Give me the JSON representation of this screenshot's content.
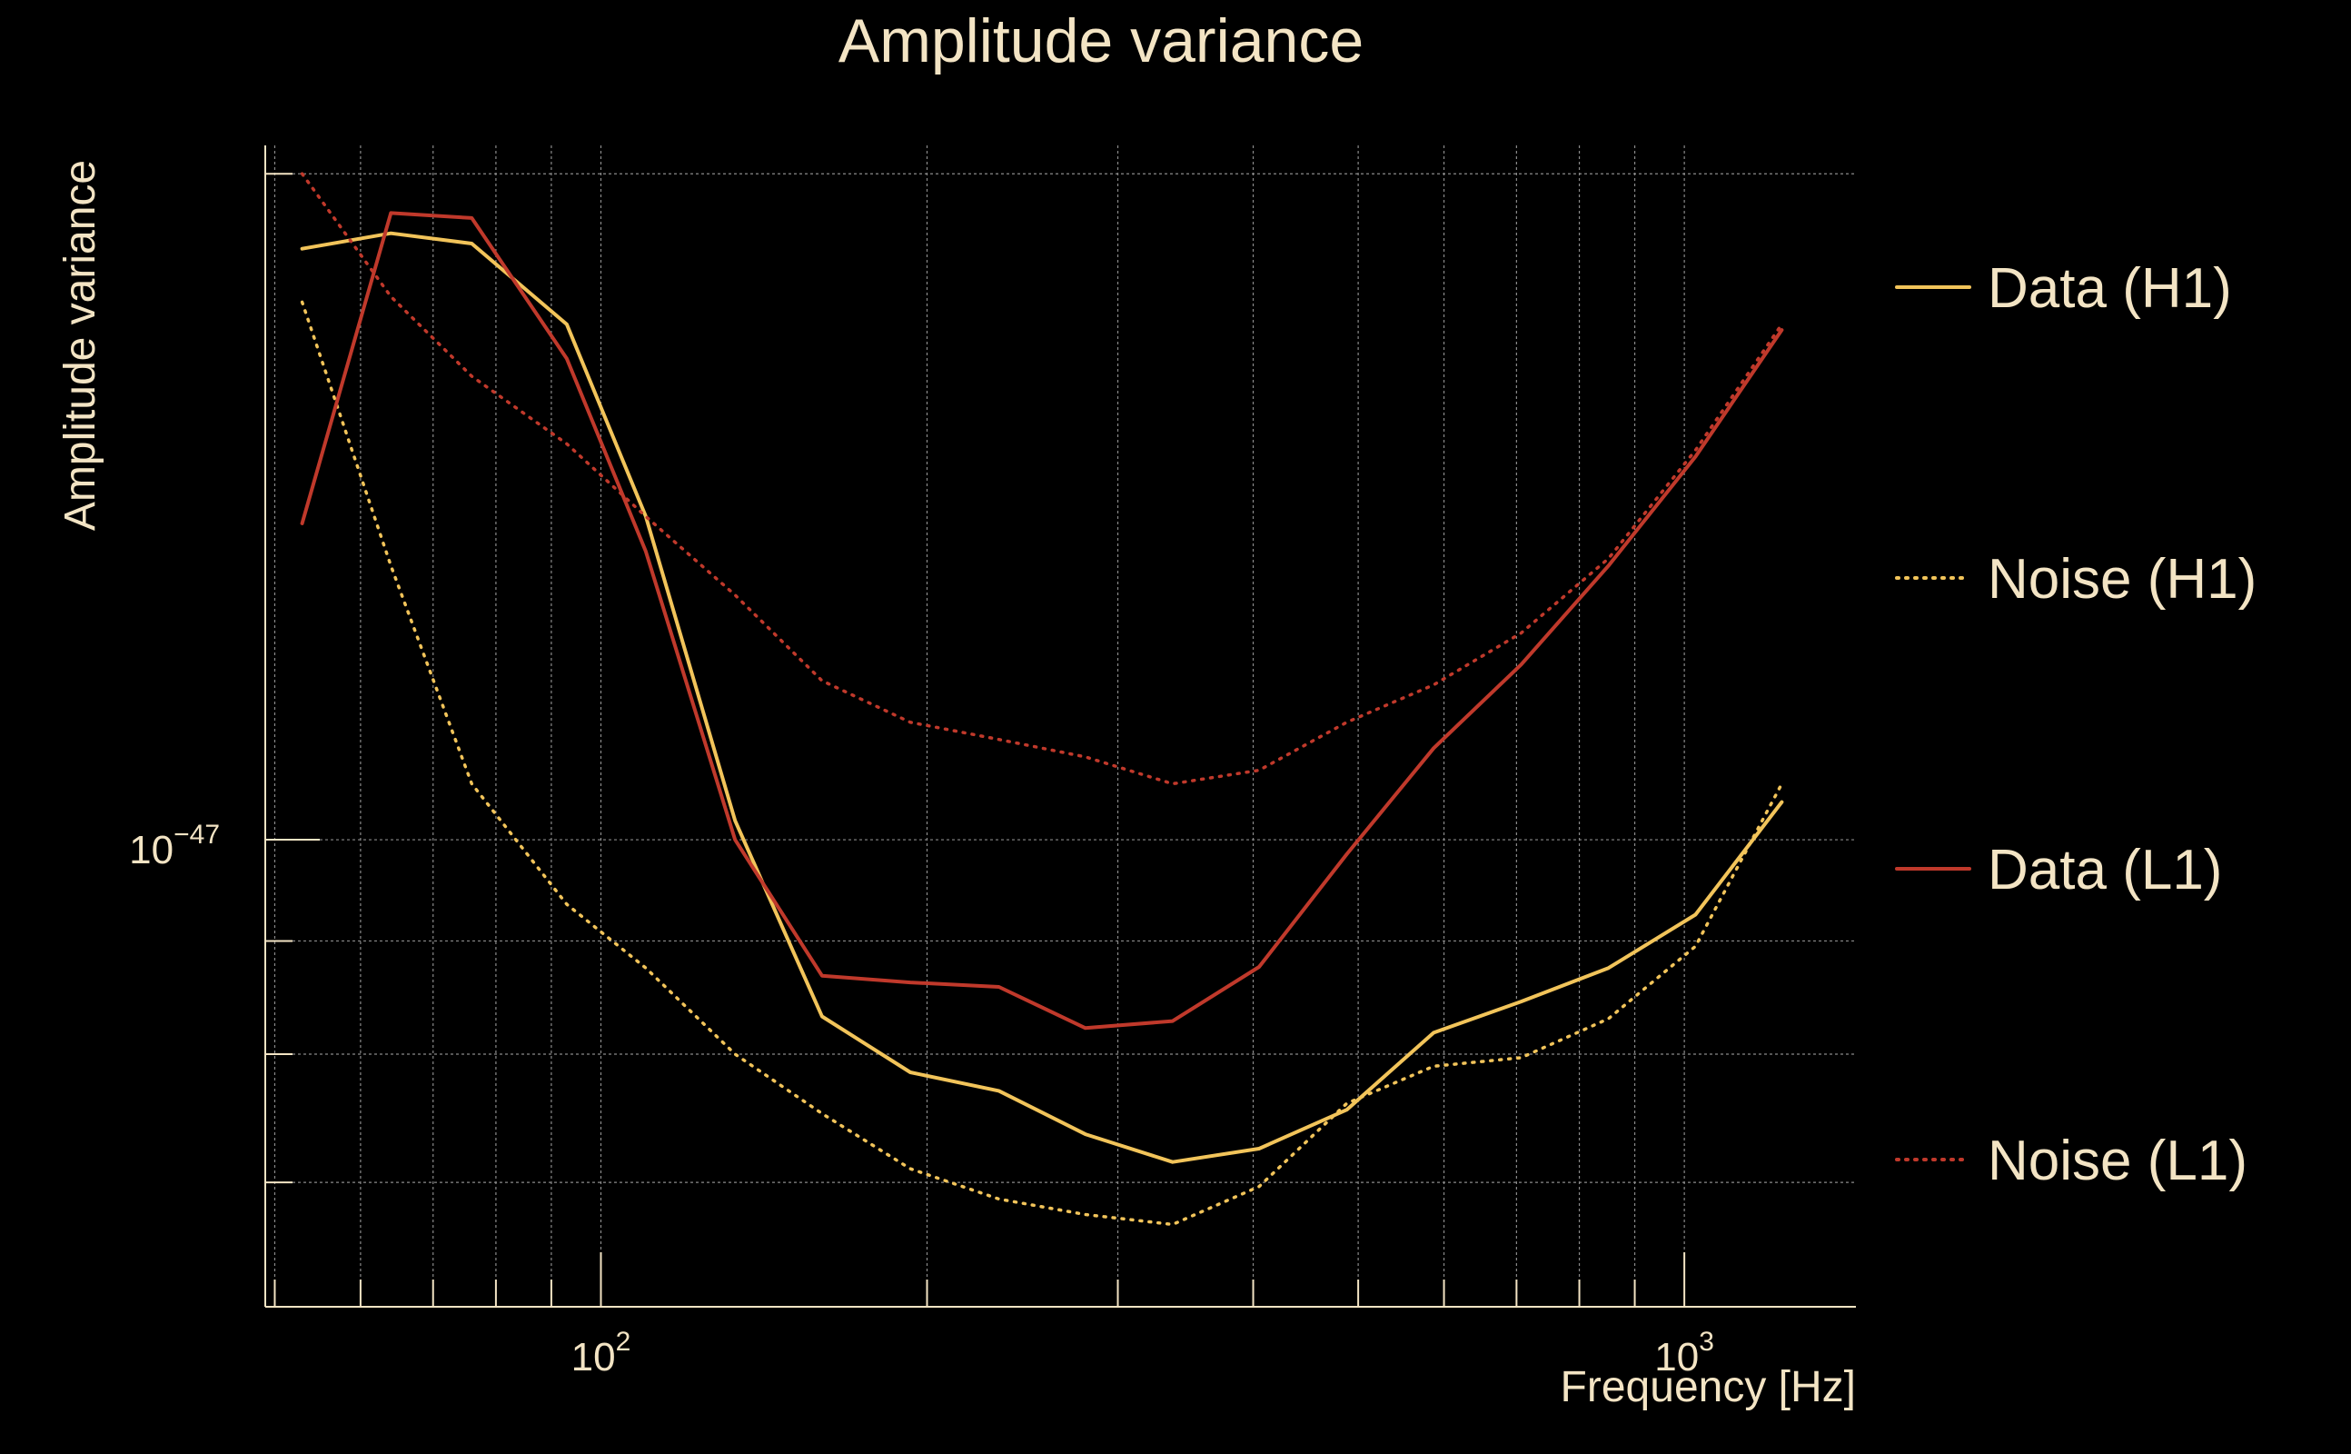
{
  "chart_data": {
    "type": "line",
    "title": "Amplitude variance",
    "xlabel": "Frequency [Hz]",
    "ylabel": "Amplitude variance",
    "x_scale": "log",
    "y_scale": "log",
    "xlim": [
      49,
      1440
    ],
    "ylim": [
      0.615,
      2.06
    ],
    "x_ticks": [
      {
        "value": 100,
        "base": "10",
        "exp": "2"
      },
      {
        "value": 1000,
        "base": "10",
        "exp": "3"
      }
    ],
    "y_ticks": [
      {
        "value": 1.0,
        "base": "10",
        "exp": "−47"
      }
    ],
    "grid": true,
    "legend_position": "right",
    "colors": {
      "background": "#000000",
      "text": "#f3e4c4",
      "grid": "#8a8a8a",
      "h1": "#f2c45a",
      "l1": "#c0392b"
    },
    "series": [
      {
        "name": "Data (H1)",
        "line_style": "solid",
        "color": "#f2c45a",
        "x": [
          53,
          64,
          76,
          93,
          110,
          133,
          160,
          193,
          233,
          280,
          337,
          405,
          488,
          587,
          707,
          851,
          1024,
          1230
        ],
        "y": [
          1.85,
          1.88,
          1.86,
          1.71,
          1.4,
          1.02,
          0.832,
          0.785,
          0.77,
          0.736,
          0.715,
          0.725,
          0.755,
          0.818,
          0.845,
          0.875,
          0.925,
          1.04
        ]
      },
      {
        "name": "Noise (H1)",
        "line_style": "dotted",
        "color": "#f2c45a",
        "x": [
          53,
          64,
          76,
          93,
          110,
          133,
          160,
          193,
          233,
          280,
          337,
          405,
          488,
          587,
          707,
          851,
          1024,
          1230
        ],
        "y": [
          1.75,
          1.33,
          1.06,
          0.935,
          0.875,
          0.8,
          0.752,
          0.71,
          0.688,
          0.677,
          0.67,
          0.697,
          0.76,
          0.79,
          0.797,
          0.83,
          0.895,
          1.06
        ]
      },
      {
        "name": "Data (L1)",
        "line_style": "solid",
        "color": "#c0392b",
        "x": [
          53,
          64,
          76,
          93,
          110,
          133,
          160,
          193,
          233,
          280,
          337,
          405,
          488,
          587,
          707,
          851,
          1024,
          1230
        ],
        "y": [
          1.39,
          1.92,
          1.91,
          1.65,
          1.35,
          1.0,
          0.868,
          0.862,
          0.858,
          0.822,
          0.828,
          0.876,
          0.985,
          1.1,
          1.2,
          1.33,
          1.49,
          1.7
        ]
      },
      {
        "name": "Noise (L1)",
        "line_style": "dotted",
        "color": "#c0392b",
        "x": [
          53,
          64,
          76,
          93,
          110,
          133,
          160,
          193,
          233,
          280,
          337,
          405,
          488,
          587,
          707,
          851,
          1024,
          1230
        ],
        "y": [
          2.0,
          1.76,
          1.62,
          1.51,
          1.4,
          1.29,
          1.18,
          1.13,
          1.11,
          1.09,
          1.06,
          1.075,
          1.13,
          1.175,
          1.24,
          1.34,
          1.5,
          1.71
        ]
      }
    ]
  }
}
